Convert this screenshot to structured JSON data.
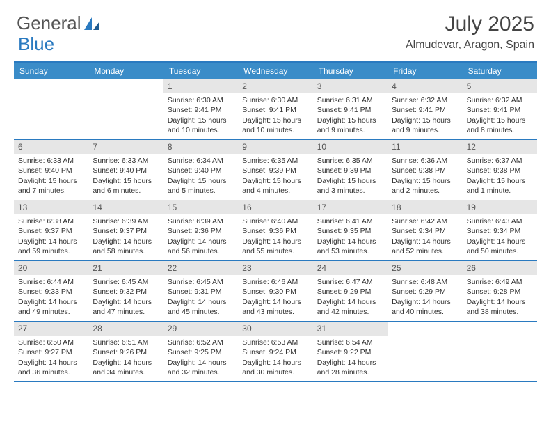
{
  "logo": {
    "text1": "General",
    "text2": "Blue"
  },
  "title": {
    "month": "July 2025",
    "location": "Almudevar, Aragon, Spain"
  },
  "colors": {
    "header_bg": "#3a8cc8",
    "header_border": "#2a7ac0",
    "daynum_bg": "#e6e6e6",
    "text": "#333333",
    "logo_gray": "#555555",
    "logo_blue": "#2a7ac0"
  },
  "day_names": [
    "Sunday",
    "Monday",
    "Tuesday",
    "Wednesday",
    "Thursday",
    "Friday",
    "Saturday"
  ],
  "weeks": [
    [
      null,
      null,
      {
        "n": "1",
        "sr": "6:30 AM",
        "ss": "9:41 PM",
        "dl": "15 hours and 10 minutes."
      },
      {
        "n": "2",
        "sr": "6:30 AM",
        "ss": "9:41 PM",
        "dl": "15 hours and 10 minutes."
      },
      {
        "n": "3",
        "sr": "6:31 AM",
        "ss": "9:41 PM",
        "dl": "15 hours and 9 minutes."
      },
      {
        "n": "4",
        "sr": "6:32 AM",
        "ss": "9:41 PM",
        "dl": "15 hours and 9 minutes."
      },
      {
        "n": "5",
        "sr": "6:32 AM",
        "ss": "9:41 PM",
        "dl": "15 hours and 8 minutes."
      }
    ],
    [
      {
        "n": "6",
        "sr": "6:33 AM",
        "ss": "9:40 PM",
        "dl": "15 hours and 7 minutes."
      },
      {
        "n": "7",
        "sr": "6:33 AM",
        "ss": "9:40 PM",
        "dl": "15 hours and 6 minutes."
      },
      {
        "n": "8",
        "sr": "6:34 AM",
        "ss": "9:40 PM",
        "dl": "15 hours and 5 minutes."
      },
      {
        "n": "9",
        "sr": "6:35 AM",
        "ss": "9:39 PM",
        "dl": "15 hours and 4 minutes."
      },
      {
        "n": "10",
        "sr": "6:35 AM",
        "ss": "9:39 PM",
        "dl": "15 hours and 3 minutes."
      },
      {
        "n": "11",
        "sr": "6:36 AM",
        "ss": "9:38 PM",
        "dl": "15 hours and 2 minutes."
      },
      {
        "n": "12",
        "sr": "6:37 AM",
        "ss": "9:38 PM",
        "dl": "15 hours and 1 minute."
      }
    ],
    [
      {
        "n": "13",
        "sr": "6:38 AM",
        "ss": "9:37 PM",
        "dl": "14 hours and 59 minutes."
      },
      {
        "n": "14",
        "sr": "6:39 AM",
        "ss": "9:37 PM",
        "dl": "14 hours and 58 minutes."
      },
      {
        "n": "15",
        "sr": "6:39 AM",
        "ss": "9:36 PM",
        "dl": "14 hours and 56 minutes."
      },
      {
        "n": "16",
        "sr": "6:40 AM",
        "ss": "9:36 PM",
        "dl": "14 hours and 55 minutes."
      },
      {
        "n": "17",
        "sr": "6:41 AM",
        "ss": "9:35 PM",
        "dl": "14 hours and 53 minutes."
      },
      {
        "n": "18",
        "sr": "6:42 AM",
        "ss": "9:34 PM",
        "dl": "14 hours and 52 minutes."
      },
      {
        "n": "19",
        "sr": "6:43 AM",
        "ss": "9:34 PM",
        "dl": "14 hours and 50 minutes."
      }
    ],
    [
      {
        "n": "20",
        "sr": "6:44 AM",
        "ss": "9:33 PM",
        "dl": "14 hours and 49 minutes."
      },
      {
        "n": "21",
        "sr": "6:45 AM",
        "ss": "9:32 PM",
        "dl": "14 hours and 47 minutes."
      },
      {
        "n": "22",
        "sr": "6:45 AM",
        "ss": "9:31 PM",
        "dl": "14 hours and 45 minutes."
      },
      {
        "n": "23",
        "sr": "6:46 AM",
        "ss": "9:30 PM",
        "dl": "14 hours and 43 minutes."
      },
      {
        "n": "24",
        "sr": "6:47 AM",
        "ss": "9:29 PM",
        "dl": "14 hours and 42 minutes."
      },
      {
        "n": "25",
        "sr": "6:48 AM",
        "ss": "9:29 PM",
        "dl": "14 hours and 40 minutes."
      },
      {
        "n": "26",
        "sr": "6:49 AM",
        "ss": "9:28 PM",
        "dl": "14 hours and 38 minutes."
      }
    ],
    [
      {
        "n": "27",
        "sr": "6:50 AM",
        "ss": "9:27 PM",
        "dl": "14 hours and 36 minutes."
      },
      {
        "n": "28",
        "sr": "6:51 AM",
        "ss": "9:26 PM",
        "dl": "14 hours and 34 minutes."
      },
      {
        "n": "29",
        "sr": "6:52 AM",
        "ss": "9:25 PM",
        "dl": "14 hours and 32 minutes."
      },
      {
        "n": "30",
        "sr": "6:53 AM",
        "ss": "9:24 PM",
        "dl": "14 hours and 30 minutes."
      },
      {
        "n": "31",
        "sr": "6:54 AM",
        "ss": "9:22 PM",
        "dl": "14 hours and 28 minutes."
      },
      null,
      null
    ]
  ],
  "labels": {
    "sunrise": "Sunrise:",
    "sunset": "Sunset:",
    "daylight": "Daylight:"
  }
}
